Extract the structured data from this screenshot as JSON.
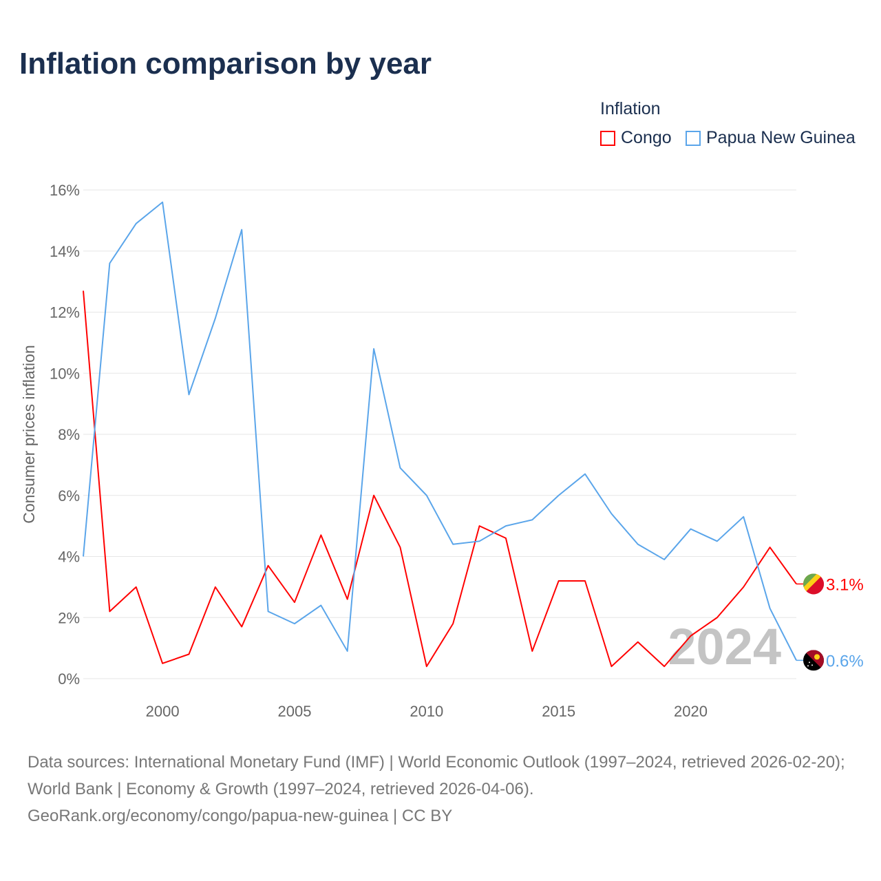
{
  "chart_data": {
    "type": "line",
    "title": "Inflation comparison by year",
    "ylabel": "Consumer prices inflation",
    "xlabel": "",
    "xlim": [
      1997,
      2024
    ],
    "ylim": [
      0,
      16
    ],
    "x_ticks": [
      2000,
      2005,
      2010,
      2015,
      2020
    ],
    "x_tick_labels": [
      "2000",
      "2005",
      "2010",
      "2015",
      "2020"
    ],
    "y_ticks": [
      0,
      2,
      4,
      6,
      8,
      10,
      12,
      14,
      16
    ],
    "y_tick_labels": [
      "0%",
      "2%",
      "4%",
      "6%",
      "8%",
      "10%",
      "12%",
      "14%",
      "16%"
    ],
    "grid": true,
    "legend_title": "Inflation",
    "legend_position": "top-right",
    "year_watermark": "2024",
    "x": [
      1997,
      1998,
      1999,
      2000,
      2001,
      2002,
      2003,
      2004,
      2005,
      2006,
      2007,
      2008,
      2009,
      2010,
      2011,
      2012,
      2013,
      2014,
      2015,
      2016,
      2017,
      2018,
      2019,
      2020,
      2021,
      2022,
      2023,
      2024
    ],
    "series": [
      {
        "name": "Congo",
        "color": "#ff0000",
        "end_label": "3.1%",
        "flag": "congo-flag",
        "values": [
          12.7,
          2.2,
          3.0,
          0.5,
          0.8,
          3.0,
          1.7,
          3.7,
          2.5,
          4.7,
          2.6,
          6.0,
          4.3,
          0.4,
          1.8,
          5.0,
          4.6,
          0.9,
          3.2,
          3.2,
          0.4,
          1.2,
          0.4,
          1.4,
          2.0,
          3.0,
          4.3,
          3.1
        ]
      },
      {
        "name": "Papua New Guinea",
        "color": "#5aa5ea",
        "end_label": "0.6%",
        "flag": "papua-new-guinea-flag",
        "values": [
          4.0,
          13.6,
          14.9,
          15.6,
          9.3,
          11.8,
          14.7,
          2.2,
          1.8,
          2.4,
          0.9,
          10.8,
          6.9,
          6.0,
          4.4,
          4.5,
          5.0,
          5.2,
          6.0,
          6.7,
          5.4,
          4.4,
          3.9,
          4.9,
          4.5,
          5.3,
          2.3,
          0.6
        ]
      }
    ]
  },
  "footer": {
    "line1": "Data sources: International Monetary Fund (IMF) | World Economic Outlook (1997–2024, retrieved 2026-02-20); World Bank | Economy & Growth (1997–2024, retrieved 2026-04-06).",
    "line2": "GeoRank.org/economy/congo/papua-new-guinea | CC BY"
  }
}
